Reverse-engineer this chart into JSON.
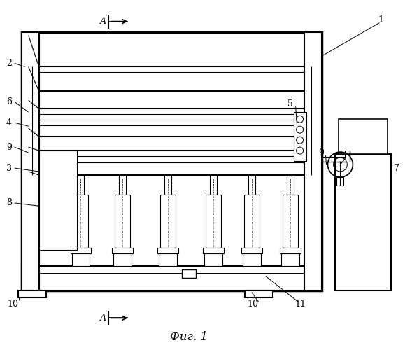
{
  "bg_color": "#ffffff",
  "line_color": "#000000",
  "title_text": "Фиг. 1",
  "title_fontsize": 12,
  "fig_width": 5.79,
  "fig_height": 5.0,
  "dpi": 100
}
